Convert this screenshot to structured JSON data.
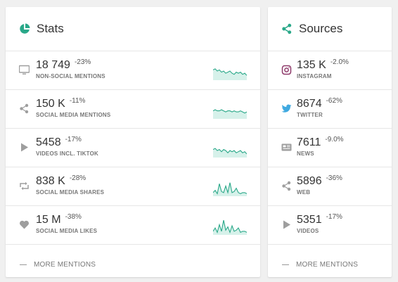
{
  "colors": {
    "accent": "#2aa889",
    "spark_fill": "#d6f1ea",
    "icon_gray": "#9e9e9e",
    "instagram": "#c13584",
    "twitter": "#3fa9e0"
  },
  "stats": {
    "title": "Stats",
    "icon": "pie-chart-icon",
    "rows": [
      {
        "icon": "monitor-icon",
        "value": "18 749",
        "change": "-23%",
        "label": "NON-SOCIAL MENTIONS",
        "spark": [
          6,
          5,
          7,
          6,
          8,
          7,
          9,
          8,
          7,
          9,
          10,
          8,
          9,
          8,
          10,
          9,
          11
        ]
      },
      {
        "icon": "share-icon",
        "value": "150 K",
        "change": "-11%",
        "label": "SOCIAL MEDIA MENTIONS",
        "spark": [
          8,
          7,
          8,
          8,
          7,
          8,
          9,
          8,
          8,
          9,
          8,
          9,
          9,
          8,
          9,
          10,
          9
        ]
      },
      {
        "icon": "play-icon",
        "value": "5458",
        "change": "-17%",
        "label": "VIDEOS INCL. TIKTOK",
        "spark": [
          8,
          7,
          9,
          8,
          10,
          8,
          9,
          11,
          9,
          10,
          9,
          11,
          10,
          9,
          11,
          10,
          12
        ]
      },
      {
        "icon": "retweet-icon",
        "value": "838 K",
        "change": "-28%",
        "label": "SOCIAL MEDIA SHARES",
        "spark": [
          12,
          10,
          13,
          4,
          11,
          12,
          6,
          12,
          3,
          12,
          11,
          8,
          12,
          13,
          12,
          12,
          13
        ]
      },
      {
        "icon": "heart-icon",
        "value": "15 M",
        "change": "-38%",
        "label": "SOCIAL MEDIA LIKES",
        "spark": [
          12,
          9,
          13,
          6,
          12,
          2,
          11,
          8,
          13,
          7,
          12,
          11,
          9,
          13,
          12,
          12,
          13
        ]
      }
    ],
    "footer": "MORE MENTIONS"
  },
  "sources": {
    "title": "Sources",
    "icon": "share-icon",
    "rows": [
      {
        "icon": "instagram-icon",
        "value": "135 K",
        "change": "-2.0%",
        "label": "INSTAGRAM"
      },
      {
        "icon": "twitter-icon",
        "value": "8674",
        "change": "-62%",
        "label": "TWITTER"
      },
      {
        "icon": "news-icon",
        "value": "7611",
        "change": "-9.0%",
        "label": "NEWS"
      },
      {
        "icon": "share-icon",
        "value": "5896",
        "change": "-36%",
        "label": "WEB"
      },
      {
        "icon": "play-icon",
        "value": "5351",
        "change": "-17%",
        "label": "VIDEOS"
      }
    ],
    "footer": "MORE MENTIONS"
  }
}
